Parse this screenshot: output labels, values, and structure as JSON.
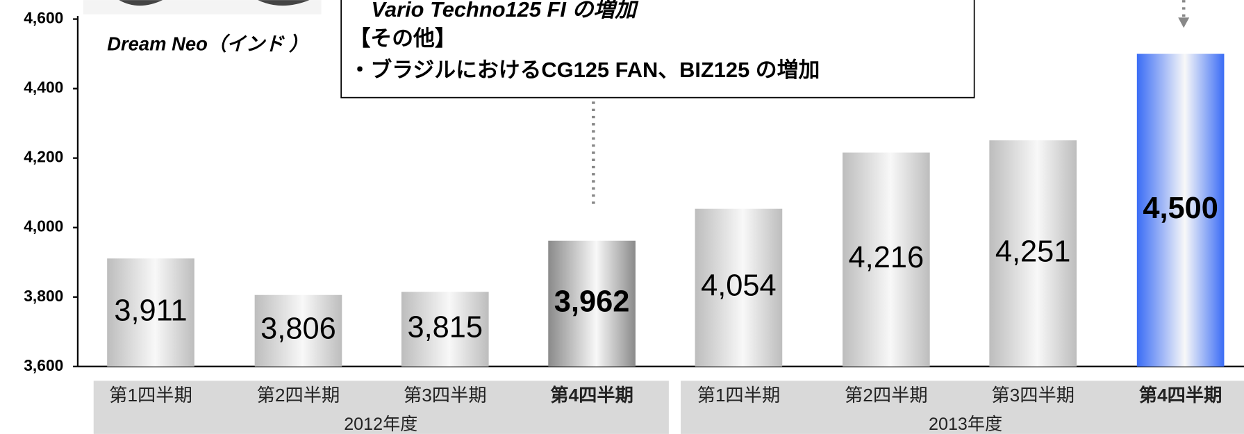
{
  "chart_data": {
    "type": "bar",
    "categories": [
      "第1四半期",
      "第2四半期",
      "第3四半期",
      "第4四半期",
      "第1四半期",
      "第2四半期",
      "第3四半期",
      "第4四半期"
    ],
    "groups": [
      "2012年度",
      "2013年度"
    ],
    "values": [
      3911,
      3806,
      3815,
      3962,
      4054,
      4216,
      4251,
      4500
    ],
    "value_labels": [
      "3,911",
      "3,806",
      "3,815",
      "3,962",
      "4,054",
      "4,216",
      "4,251",
      "4,500"
    ],
    "colors": [
      "#bdbdbd",
      "#bdbdbd",
      "#bdbdbd",
      "#8a8a8a",
      "#bdbdbd",
      "#bdbdbd",
      "#bdbdbd",
      "#3a6cf5"
    ],
    "ylim": [
      3600,
      4600
    ],
    "yticks": [
      {
        "value": 3600,
        "label": "3,600"
      },
      {
        "value": 3800,
        "label": "3,800"
      },
      {
        "value": 4000,
        "label": "4,000"
      },
      {
        "value": 4200,
        "label": "4,200"
      },
      {
        "value": 4400,
        "label": "4,400"
      },
      {
        "value": 4600,
        "label": "4,600"
      }
    ],
    "annotations": [
      "Dream Neo（インド ）",
      "Vario Techno125 FI の増加",
      "【その他】",
      "・ブラジルにおけるCG125 FAN、BIZ125 の増加"
    ]
  }
}
